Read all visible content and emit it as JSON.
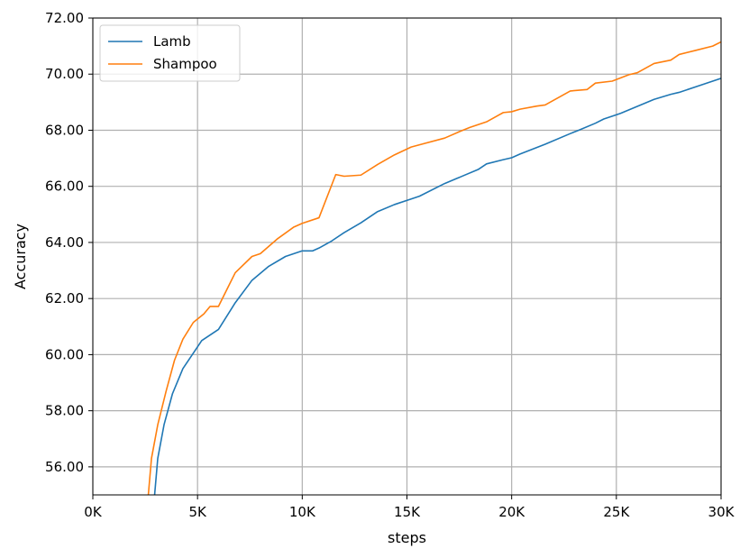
{
  "chart_data": {
    "type": "line",
    "xlabel": "steps",
    "ylabel": "Accuracy",
    "xlim": [
      0,
      30000
    ],
    "ylim": [
      55.0,
      72.0
    ],
    "grid": true,
    "legend_placement": "top-left",
    "x_ticks": [
      {
        "value": 0,
        "label": "0K"
      },
      {
        "value": 5000,
        "label": "5K"
      },
      {
        "value": 10000,
        "label": "10K"
      },
      {
        "value": 15000,
        "label": "15K"
      },
      {
        "value": 20000,
        "label": "20K"
      },
      {
        "value": 25000,
        "label": "25K"
      },
      {
        "value": 30000,
        "label": "30K"
      }
    ],
    "y_ticks": [
      {
        "value": 56,
        "label": "56.00"
      },
      {
        "value": 58,
        "label": "58.00"
      },
      {
        "value": 60,
        "label": "60.00"
      },
      {
        "value": 62,
        "label": "62.00"
      },
      {
        "value": 64,
        "label": "64.00"
      },
      {
        "value": 66,
        "label": "66.00"
      },
      {
        "value": 68,
        "label": "68.00"
      },
      {
        "value": 70,
        "label": "70.00"
      },
      {
        "value": 72,
        "label": "72.00"
      }
    ],
    "series": [
      {
        "name": "Lamb",
        "color": "#1f77b4",
        "x": [
          2950,
          3100,
          3400,
          3800,
          4300,
          5200,
          6000,
          6800,
          7600,
          8400,
          9200,
          10000,
          10500,
          10800,
          11400,
          12000,
          12800,
          13600,
          14400,
          15200,
          15600,
          16800,
          17600,
          18400,
          18800,
          19600,
          20000,
          20400,
          21600,
          22800,
          23200,
          24000,
          24400,
          25200,
          26000,
          26800,
          27600,
          28000,
          29200,
          30000
        ],
        "y": [
          55.0,
          56.3,
          57.5,
          58.6,
          59.5,
          60.5,
          60.9,
          61.85,
          62.65,
          63.15,
          63.5,
          63.7,
          63.7,
          63.8,
          64.05,
          64.35,
          64.7,
          65.1,
          65.35,
          65.55,
          65.65,
          66.1,
          66.35,
          66.6,
          66.8,
          66.95,
          67.02,
          67.15,
          67.5,
          67.88,
          68.0,
          68.25,
          68.4,
          68.6,
          68.85,
          69.1,
          69.28,
          69.35,
          69.65,
          69.85
        ]
      },
      {
        "name": "Shampoo",
        "color": "#ff7f0e",
        "x": [
          2650,
          2800,
          3100,
          3500,
          3900,
          4300,
          4800,
          5300,
          5600,
          6000,
          6800,
          7600,
          8000,
          8800,
          9600,
          10000,
          10800,
          11600,
          12000,
          12800,
          13600,
          14400,
          15200,
          15600,
          16800,
          17600,
          18000,
          18800,
          19600,
          20000,
          20400,
          21200,
          21600,
          22800,
          23600,
          24000,
          24800,
          25600,
          26000,
          26800,
          27600,
          28000,
          28800,
          29600,
          30000
        ],
        "y": [
          55.0,
          56.3,
          57.5,
          58.7,
          59.8,
          60.55,
          61.15,
          61.45,
          61.72,
          61.72,
          62.92,
          63.5,
          63.6,
          64.12,
          64.55,
          64.68,
          64.88,
          66.42,
          66.36,
          66.4,
          66.78,
          67.12,
          67.4,
          67.48,
          67.72,
          67.98,
          68.1,
          68.3,
          68.63,
          68.66,
          68.75,
          68.86,
          68.9,
          69.4,
          69.45,
          69.68,
          69.75,
          69.98,
          70.05,
          70.38,
          70.5,
          70.7,
          70.85,
          71.0,
          71.15
        ]
      }
    ]
  }
}
